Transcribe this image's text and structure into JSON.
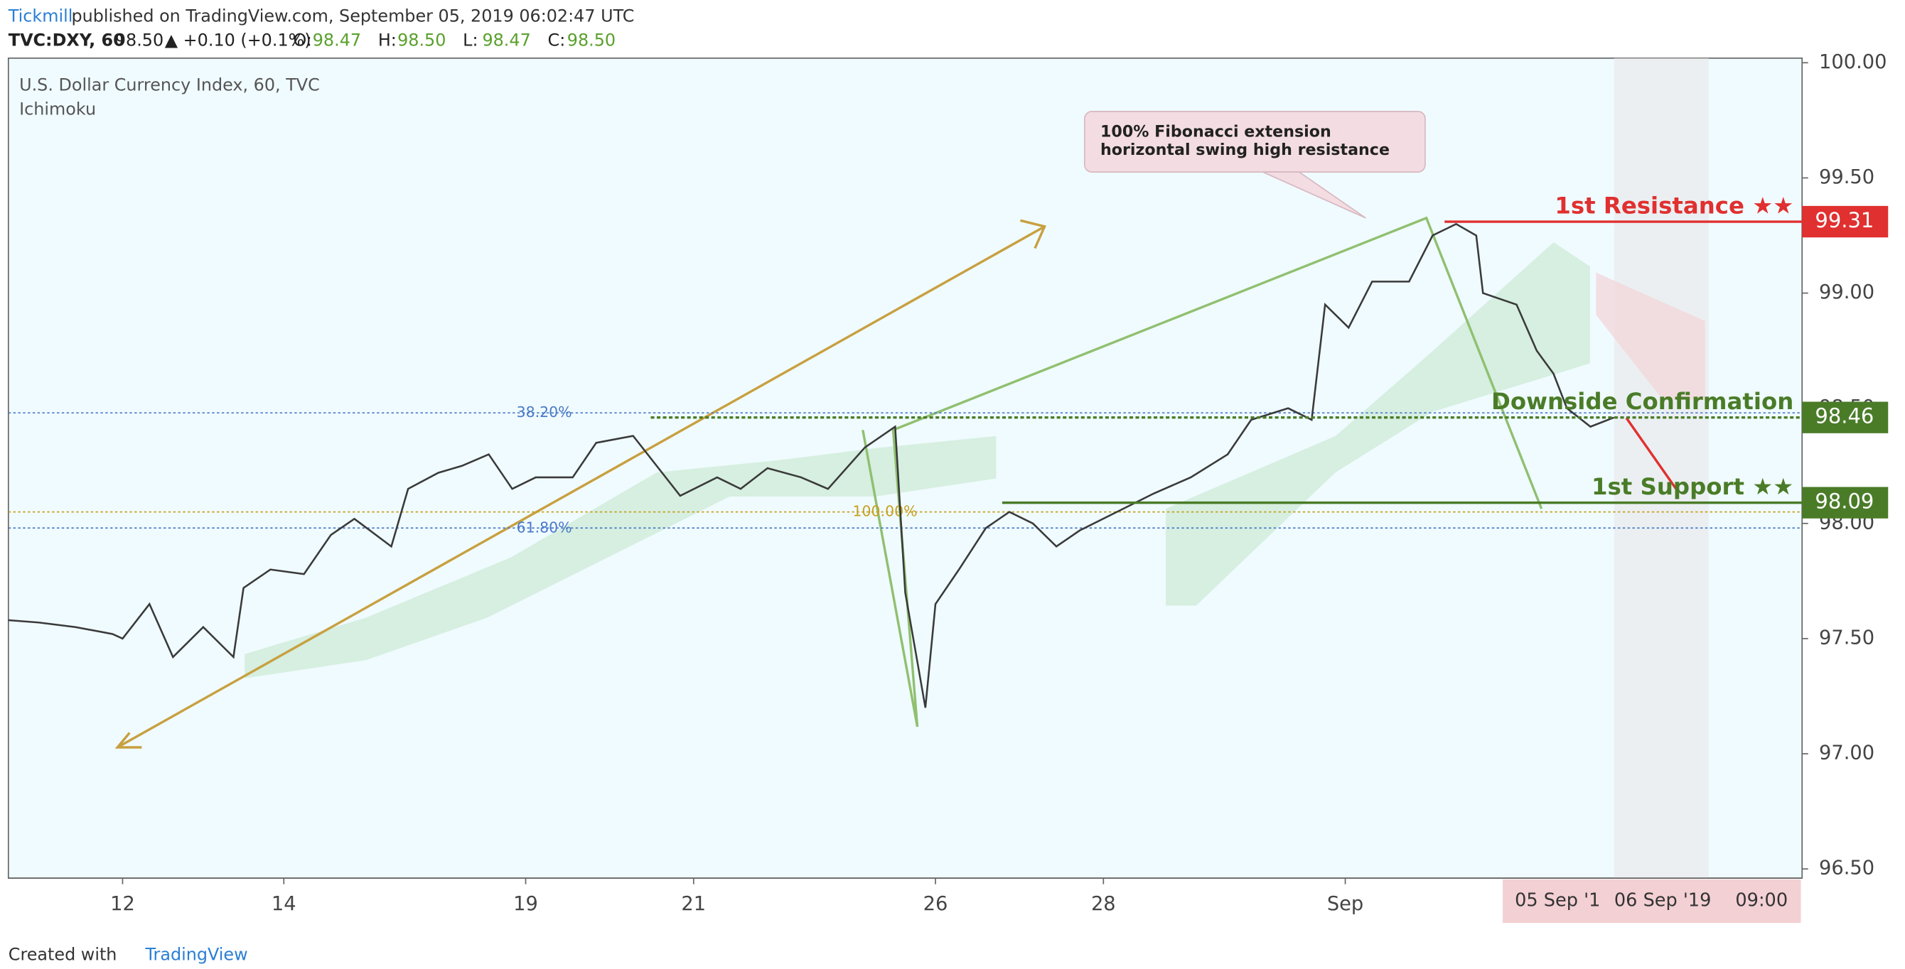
{
  "header": {
    "publisher": "Tickmill",
    "published": "published on TradingView.com, September 05, 2019 06:02:47 UTC",
    "symbol": "TVC:DXY, 60",
    "price": "98.50",
    "change": "▲ +0.10 (+0.1%)",
    "ohlc": [
      [
        "O:",
        "98.47"
      ],
      [
        "H:",
        "98.50"
      ],
      [
        "L:",
        "98.47"
      ],
      [
        "C:",
        "98.50"
      ]
    ]
  },
  "footer": {
    "created": "Created with",
    "brand": "TradingView"
  },
  "chart_data": {
    "type": "line",
    "title": "U.S. Dollar Currency Index, 60, TVC",
    "subtitle": "Ichimoku",
    "series": [
      {
        "name": "DXY",
        "color": "#3a3a3a",
        "x": [
          0,
          9,
          20,
          31,
          34,
          42,
          49,
          58,
          67,
          70,
          78,
          88,
          96,
          103,
          114,
          119,
          128,
          135,
          143,
          150,
          157,
          168,
          175,
          186,
          193,
          200,
          211,
          218,
          226,
          236,
          244,
          255,
          264,
          267,
          273,
          276,
          283,
          291,
          298,
          305,
          312,
          319,
          330,
          341,
          352,
          363,
          370,
          381,
          388,
          392,
          399,
          406,
          417,
          424,
          431,
          437,
          439,
          449,
          455,
          460,
          464,
          471,
          478
        ],
        "values": [
          97.58,
          97.57,
          97.55,
          97.52,
          97.5,
          97.65,
          97.42,
          97.55,
          97.42,
          97.72,
          97.8,
          97.78,
          97.95,
          98.02,
          97.9,
          98.15,
          98.22,
          98.25,
          98.3,
          98.15,
          98.2,
          98.2,
          98.35,
          98.38,
          98.25,
          98.12,
          98.2,
          98.15,
          98.24,
          98.2,
          98.15,
          98.33,
          98.42,
          97.7,
          97.2,
          97.65,
          97.8,
          97.98,
          98.05,
          98.0,
          97.9,
          97.97,
          98.05,
          98.13,
          98.2,
          98.3,
          98.45,
          98.5,
          98.45,
          98.95,
          98.85,
          99.05,
          99.05,
          99.25,
          99.3,
          99.25,
          99.0,
          98.95,
          98.75,
          98.65,
          98.5,
          98.42,
          98.46
        ]
      }
    ],
    "xlim": [
      0,
      534
    ],
    "ylim": [
      96.46,
      100.02
    ],
    "xticks": [
      {
        "value": 34,
        "label": "12"
      },
      {
        "value": 82,
        "label": "14"
      },
      {
        "value": 154,
        "label": "19"
      },
      {
        "value": 204,
        "label": "21"
      },
      {
        "value": 276,
        "label": "26"
      },
      {
        "value": 326,
        "label": "28"
      },
      {
        "value": 398,
        "label": "Sep"
      }
    ],
    "yticks": [
      {
        "value": 96.5,
        "label": "96.50"
      },
      {
        "value": 97,
        "label": "97.00"
      },
      {
        "value": 97.5,
        "label": "97.50"
      },
      {
        "value": 98,
        "label": "98.00"
      },
      {
        "value": 98.5,
        "label": "98.50"
      },
      {
        "value": 99,
        "label": "99.00"
      },
      {
        "value": 99.5,
        "label": "99.50"
      },
      {
        "value": 100,
        "label": "100.00"
      }
    ],
    "levels": [
      {
        "label": "1st Resistance ★★",
        "value": 99.31,
        "color": "#e03030"
      },
      {
        "label": "Downside Confirmation",
        "value": 98.46,
        "color": "#4a7c28"
      },
      {
        "label": "1st Support ★★",
        "value": 98.09,
        "color": "#4a7c28"
      }
    ],
    "fib_levels": [
      {
        "label": "38.20%",
        "value": 98.48,
        "color": "#4a7ac8"
      },
      {
        "label": "61.80%",
        "value": 97.98,
        "color": "#4a7ac8"
      },
      {
        "label": "100.00%",
        "value": 98.05,
        "color": "#c8a020"
      }
    ],
    "callout": [
      "100% Fibonacci extension",
      "horizontal swing high resistance"
    ],
    "crosshair_labels": [
      "05 Sep '1",
      "06 Sep '19",
      "09:00"
    ]
  }
}
